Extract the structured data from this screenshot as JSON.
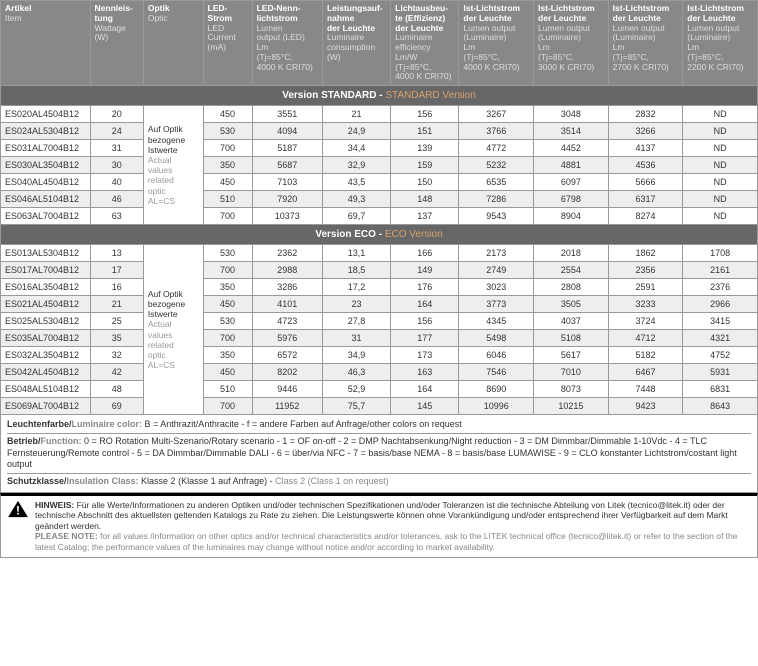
{
  "headers": [
    {
      "de": "Artikel",
      "en": "Item"
    },
    {
      "de": "Nennleis-\ntung",
      "en": "Wattage\n(W)"
    },
    {
      "de": "Optik",
      "en": "Optic"
    },
    {
      "de": "LED-\nStrom",
      "en": "LED\nCurrent\n(mA)"
    },
    {
      "de": "LED-Nenn-\nlichtstrom",
      "en": "Lumen\noutput (LED)\nLm\n(Tj=85°C,\n4000 K CRI70)"
    },
    {
      "de": "Leistungsauf-\nnahme\nder Leuchte",
      "en": "Luminaire\nconsumption\n(W)"
    },
    {
      "de": "Lichtausbeu-\nte (Effizienz)\nder Leuchte",
      "en": "Luminaire\nefficiency\nLm/W\n(Tj=85°C,\n4000 K CRI70)"
    },
    {
      "de": "Ist-Lichtstrom\nder Leuchte",
      "en": "Lumen output\n(Luminaire)\nLm\n(Tj=85°C,\n4000 K CRI70)"
    },
    {
      "de": "Ist-Lichtstrom\nder Leuchte",
      "en": "Lumen output\n(Luminaire)\nLm\n(Tj=85°C,\n3000 K CRI70)"
    },
    {
      "de": "Ist-Lichtstrom\nder Leuchte",
      "en": "Lumen output\n(Luminaire)\nLm\n(Tj=85°C,\n2700 K CRI70)"
    },
    {
      "de": "Ist-Lichtstrom\nder Leuchte",
      "en": "Lumen output\n(Luminaire)\nLm\n(Tj=85°C,\n2200 K CRI70)"
    }
  ],
  "optic_note": {
    "de": "Auf Optik\nbezogene\nIstwerte",
    "en": "Actual\nvalues\nrelated\noptic\nAL=CS"
  },
  "sections": [
    {
      "title_de": "Version STANDARD",
      "title_en": "STANDARD Version",
      "rows": [
        [
          "ES020AL4504B12",
          "20",
          "450",
          "3551",
          "21",
          "156",
          "3267",
          "3048",
          "2832",
          "ND"
        ],
        [
          "ES024AL5304B12",
          "24",
          "530",
          "4094",
          "24,9",
          "151",
          "3766",
          "3514",
          "3266",
          "ND"
        ],
        [
          "ES031AL7004B12",
          "31",
          "700",
          "5187",
          "34,4",
          "139",
          "4772",
          "4452",
          "4137",
          "ND"
        ],
        [
          "ES030AL3504B12",
          "30",
          "350",
          "5687",
          "32,9",
          "159",
          "5232",
          "4881",
          "4536",
          "ND"
        ],
        [
          "ES040AL4504B12",
          "40",
          "450",
          "7103",
          "43,5",
          "150",
          "6535",
          "6097",
          "5666",
          "ND"
        ],
        [
          "ES046AL5104B12",
          "46",
          "510",
          "7920",
          "49,3",
          "148",
          "7286",
          "6798",
          "6317",
          "ND"
        ],
        [
          "ES063AL7004B12",
          "63",
          "700",
          "10373",
          "69,7",
          "137",
          "9543",
          "8904",
          "8274",
          "ND"
        ]
      ]
    },
    {
      "title_de": "Version ECO",
      "title_en": "ECO Version",
      "rows": [
        [
          "ES013AL5304B12",
          "13",
          "530",
          "2362",
          "13,1",
          "166",
          "2173",
          "2018",
          "1862",
          "1708"
        ],
        [
          "ES017AL7004B12",
          "17",
          "700",
          "2988",
          "18,5",
          "149",
          "2749",
          "2554",
          "2356",
          "2161"
        ],
        [
          "ES016AL3504B12",
          "16",
          "350",
          "3286",
          "17,2",
          "176",
          "3023",
          "2808",
          "2591",
          "2376"
        ],
        [
          "ES021AL4504B12",
          "21",
          "450",
          "4101",
          "23",
          "164",
          "3773",
          "3505",
          "3233",
          "2966"
        ],
        [
          "ES025AL5304B12",
          "25",
          "530",
          "4723",
          "27,8",
          "156",
          "4345",
          "4037",
          "3724",
          "3415"
        ],
        [
          "ES035AL7004B12",
          "35",
          "700",
          "5976",
          "31",
          "177",
          "5498",
          "5108",
          "4712",
          "4321"
        ],
        [
          "ES032AL3504B12",
          "32",
          "350",
          "6572",
          "34,9",
          "173",
          "6046",
          "5617",
          "5182",
          "4752"
        ],
        [
          "ES042AL4504B12",
          "42",
          "450",
          "8202",
          "46,3",
          "163",
          "7546",
          "7010",
          "6467",
          "5931"
        ],
        [
          "ES048AL5104B12",
          "48",
          "510",
          "9446",
          "52,9",
          "164",
          "8690",
          "8073",
          "7448",
          "6831"
        ],
        [
          "ES069AL7004B12",
          "69",
          "700",
          "11952",
          "75,7",
          "145",
          "10996",
          "10215",
          "9423",
          "8643"
        ]
      ]
    }
  ],
  "notes": {
    "color": {
      "label_de": "Leuchtenfarbe/",
      "label_en": "Luminaire color:",
      "text": " B = Anthrazit/Anthracite - f = andere Farben auf Anfrage/other colors on request"
    },
    "function": {
      "label_de": "Betrieb/",
      "label_en": "Function:",
      "text": " 0 = RO Rotation Multi-Szenario/Rotary scenario - 1 = OF on-off - 2 = DMP Nachtabsenkung/Night reduction - 3 = DM Dimmbar/Dimmable 1-10Vdc - 4 = TLC Fernsteuerung/Remote control - 5 = DA Dimmbar/Dimmable DALI - 6 = über/via NFC - 7 = basis/base NEMA - 8 = basis/base LUMAWISE - 9 = CLO konstanter Lichtstrom/costant light output"
    },
    "insulation": {
      "label_de": "Schutzklasse/",
      "label_en": "Insulation Class:",
      "text_de": " Klasse 2 (Klasse 1 auf Anfrage) - ",
      "text_en": "Class 2 (Class 1 on request)"
    }
  },
  "hinweis": {
    "de_label": "HINWEIS:",
    "de": " Für alle Werte/Informationen zu anderen Optiken und/oder technischen Spezifikationen und/oder Toleranzen ist die technische Abteilung von Litek (tecnico@litek.it) oder der technische Abschnitt des aktuellsten geltenden Katalogs zu Rate zu ziehen. Die Leistungswerte können ohne Vorankündigung und/oder entsprechend ihrer Verfügbarkeit auf dem Markt geändert werden.",
    "en_label": "PLEASE NOTE:",
    "en": " for all values /information on other optics and/or technical characteristics and/or tolerances, ask to the LITEK technical office (tecnico@litek.it) or refer to the  section of the latest Catalog; the performance values of the luminaires  may change without notice and/or according to market availability."
  }
}
